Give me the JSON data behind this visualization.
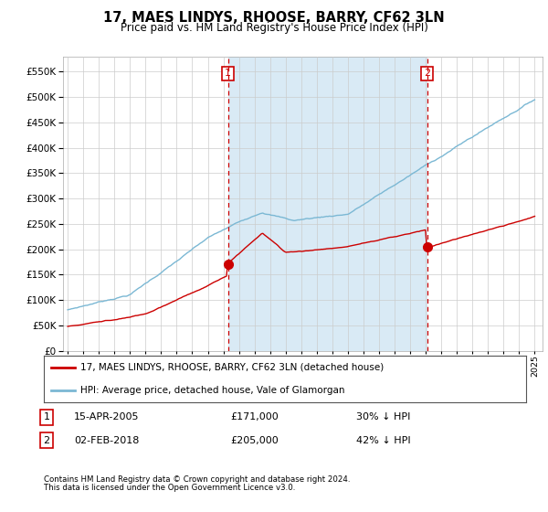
{
  "title": "17, MAES LINDYS, RHOOSE, BARRY, CF62 3LN",
  "subtitle": "Price paid vs. HM Land Registry's House Price Index (HPI)",
  "hpi_color": "#7bb8d4",
  "price_color": "#cc0000",
  "shade_color": "#d9eaf5",
  "bg_color": "#ffffff",
  "grid_color": "#cccccc",
  "annotation_color": "#cc0000",
  "ylim": [
    0,
    580000
  ],
  "yticks": [
    0,
    50000,
    100000,
    150000,
    200000,
    250000,
    300000,
    350000,
    400000,
    450000,
    500000,
    550000
  ],
  "legend_label_red": "17, MAES LINDYS, RHOOSE, BARRY, CF62 3LN (detached house)",
  "legend_label_blue": "HPI: Average price, detached house, Vale of Glamorgan",
  "point1_date": "15-APR-2005",
  "point1_price": "£171,000",
  "point1_pct": "30% ↓ HPI",
  "point1_year": 2005.29,
  "point1_value": 171000,
  "point2_date": "02-FEB-2018",
  "point2_price": "£205,000",
  "point2_pct": "42% ↓ HPI",
  "point2_year": 2018.09,
  "point2_value": 205000,
  "footer1": "Contains HM Land Registry data © Crown copyright and database right 2024.",
  "footer2": "This data is licensed under the Open Government Licence v3.0."
}
